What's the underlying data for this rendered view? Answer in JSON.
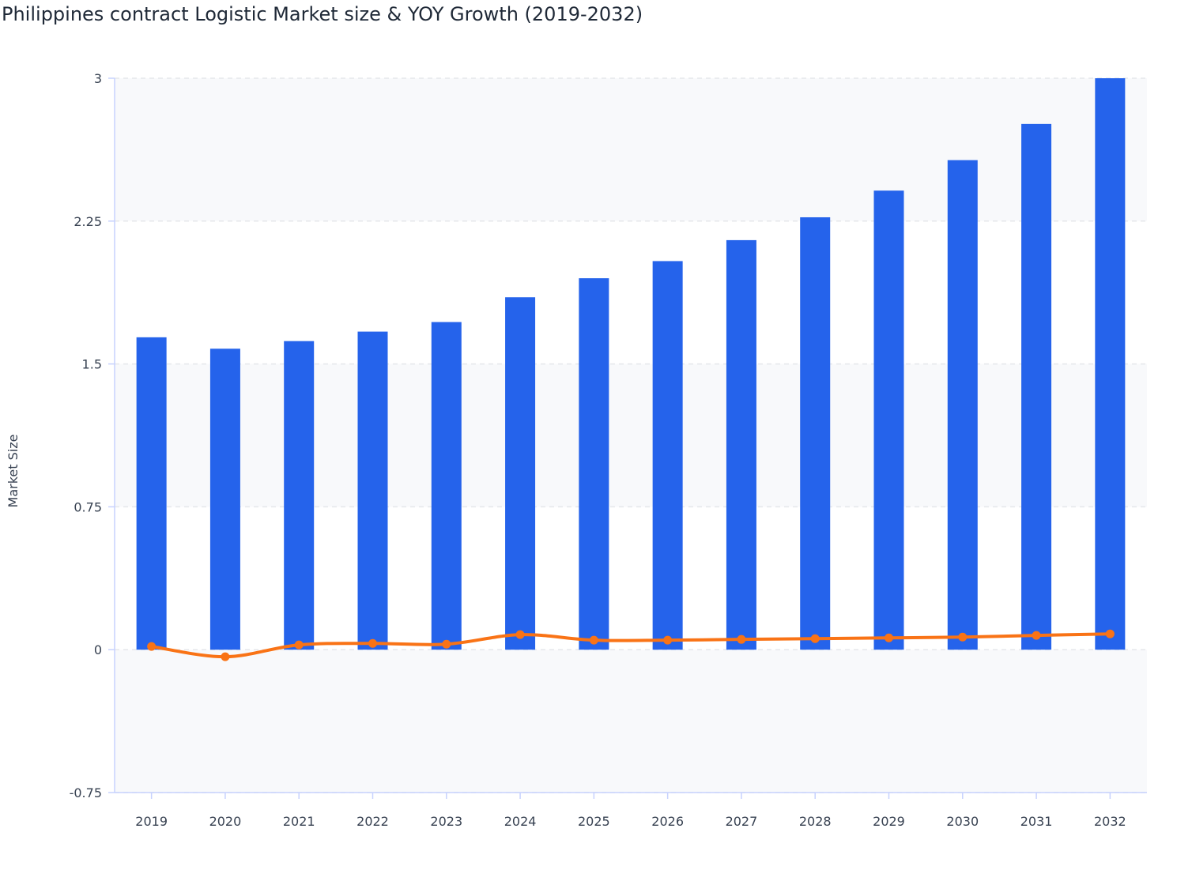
{
  "chart_data": {
    "type": "bar+line",
    "title": "Philippines contract Logistic Market size & YOY Growth (2019-2032)",
    "xlabel": "",
    "ylabel": "Market Size",
    "ylim": [
      -0.75,
      3
    ],
    "yticks": [
      "-0.75",
      "0",
      "0.75",
      "1.5",
      "2.25",
      "3"
    ],
    "grid": true,
    "categories": [
      "2019",
      "2020",
      "2021",
      "2022",
      "2023",
      "2024",
      "2025",
      "2026",
      "2027",
      "2028",
      "2029",
      "2030",
      "2031",
      "2032"
    ],
    "series": [
      {
        "type": "bar",
        "color": "#2563eb",
        "values": [
          1.64,
          1.58,
          1.62,
          1.67,
          1.72,
          1.85,
          1.95,
          2.04,
          2.15,
          2.27,
          2.41,
          2.57,
          2.76,
          3.0
        ]
      },
      {
        "type": "line",
        "color": "#f97316",
        "values": [
          0.017,
          -0.037,
          0.025,
          0.033,
          0.029,
          0.079,
          0.05,
          0.05,
          0.054,
          0.058,
          0.062,
          0.066,
          0.075,
          0.083
        ]
      }
    ]
  }
}
